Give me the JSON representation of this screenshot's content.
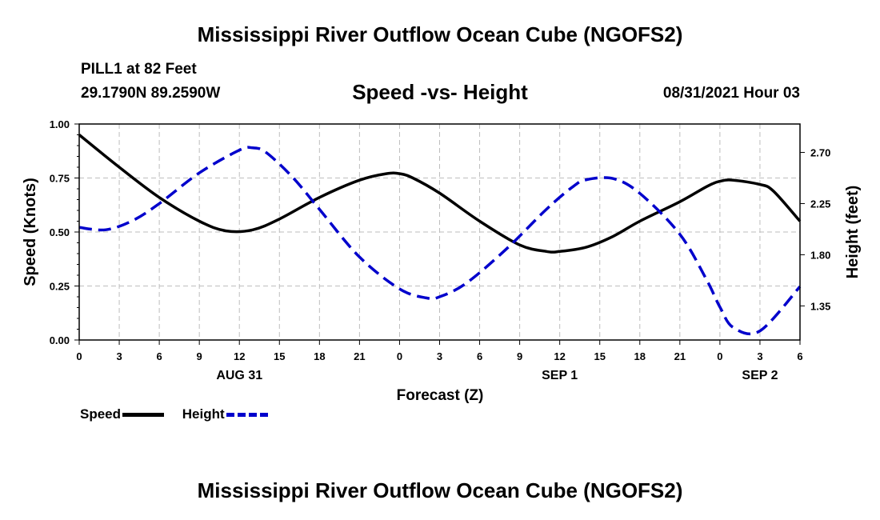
{
  "header": {
    "title": "Mississippi River Outflow Ocean Cube (NGOFS2)",
    "station": "PILL1 at 82 Feet",
    "coords": "29.1790N  89.2590W",
    "subtitle": "Speed -vs- Height",
    "datetime": "08/31/2021 Hour 03"
  },
  "footer": {
    "title": "Mississippi River Outflow Ocean Cube (NGOFS2)"
  },
  "legend": {
    "speed": "Speed",
    "height": "Height"
  },
  "chart_data": {
    "type": "line",
    "xlabel": "Forecast (Z)",
    "ylabel_left": "Speed (Knots)",
    "ylabel_right": "Height (feet)",
    "xlim": [
      0,
      54
    ],
    "ylim_left": [
      0,
      1
    ],
    "ylim_right": [
      1.05,
      2.95
    ],
    "grid": true,
    "x_ticks": [
      0,
      3,
      6,
      9,
      12,
      15,
      18,
      21,
      24,
      27,
      30,
      33,
      36,
      39,
      42,
      45,
      48,
      51,
      54
    ],
    "x_tick_labels": [
      "0",
      "3",
      "6",
      "9",
      "12",
      "15",
      "18",
      "21",
      "0",
      "3",
      "6",
      "9",
      "12",
      "15",
      "18",
      "21",
      "0",
      "3",
      "6"
    ],
    "y_left_ticks": [
      0,
      0.25,
      0.5,
      0.75,
      1.0
    ],
    "y_left_tick_labels": [
      "0.00",
      "0.25",
      "0.50",
      "0.75",
      "1.00"
    ],
    "y_right_ticks": [
      1.35,
      1.8,
      2.25,
      2.7
    ],
    "y_right_tick_labels": [
      "1.35",
      "1.80",
      "2.25",
      "2.70"
    ],
    "date_labels": [
      {
        "x": 12,
        "label": "AUG 31"
      },
      {
        "x": 36,
        "label": "SEP 1"
      },
      {
        "x": 51,
        "label": "SEP 2"
      }
    ],
    "series": [
      {
        "name": "Speed",
        "axis": "left",
        "color": "#000000",
        "dash": "solid",
        "x": [
          0,
          3,
          6,
          9,
          11,
          13,
          15,
          18,
          21,
          23,
          24,
          25,
          27,
          30,
          33,
          35,
          36,
          38,
          40,
          42,
          45,
          47,
          48,
          49,
          51,
          52,
          54
        ],
        "y": [
          0.95,
          0.8,
          0.66,
          0.55,
          0.505,
          0.51,
          0.56,
          0.66,
          0.74,
          0.77,
          0.77,
          0.75,
          0.68,
          0.55,
          0.44,
          0.41,
          0.41,
          0.43,
          0.48,
          0.55,
          0.64,
          0.71,
          0.735,
          0.74,
          0.72,
          0.69,
          0.55
        ]
      },
      {
        "name": "Height",
        "axis": "right",
        "color": "#0000cc",
        "dash": "dashed",
        "x": [
          0,
          2,
          4,
          6,
          9,
          12,
          13,
          14,
          16,
          18,
          21,
          24,
          26,
          27,
          29,
          32,
          35,
          37,
          38,
          40,
          42,
          45,
          47,
          48,
          49,
          51,
          54
        ],
        "y": [
          2.04,
          2.02,
          2.1,
          2.25,
          2.52,
          2.72,
          2.74,
          2.7,
          2.48,
          2.2,
          1.78,
          1.5,
          1.42,
          1.43,
          1.55,
          1.85,
          2.2,
          2.4,
          2.46,
          2.47,
          2.34,
          1.98,
          1.58,
          1.34,
          1.16,
          1.13,
          1.52
        ]
      }
    ]
  }
}
